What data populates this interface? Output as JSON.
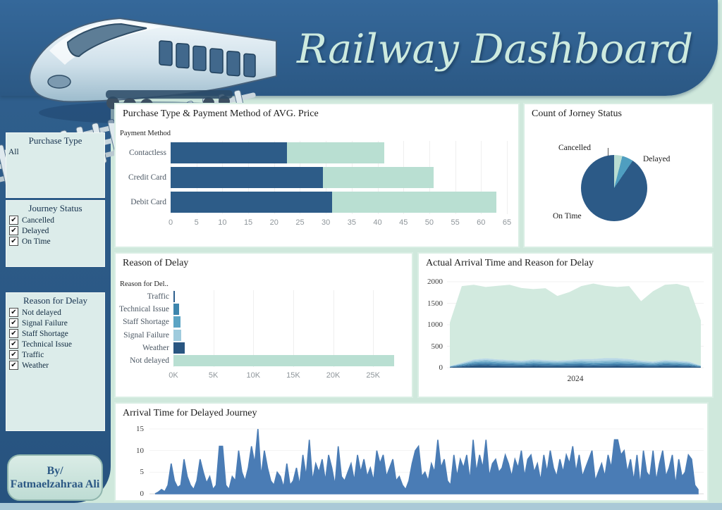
{
  "header": {
    "title": "Railway Dashboard"
  },
  "palette": {
    "header_blue": "#2f5f8d",
    "mint_background": "#cfe8dc",
    "dark_bar": "#2d5c88",
    "mint_bar": "#b9dfd2",
    "spike_blue": "#4a7cb5",
    "bottom_strip": "#aac9d7"
  },
  "sidebar": {
    "purchase_type": {
      "title": "Purchase Type",
      "value": "All"
    },
    "journey_status": {
      "title": "Journey Status",
      "items": [
        {
          "label": "Cancelled",
          "checked": true
        },
        {
          "label": "Delayed",
          "checked": true
        },
        {
          "label": "On Time",
          "checked": true
        }
      ]
    },
    "reason_for_delay": {
      "title": "Reason for Delay",
      "items": [
        {
          "label": "Not delayed",
          "checked": true
        },
        {
          "label": "Signal Failure",
          "checked": true
        },
        {
          "label": "Staff Shortage",
          "checked": true
        },
        {
          "label": "Technical Issue",
          "checked": true
        },
        {
          "label": "Traffic",
          "checked": true
        },
        {
          "label": "Weather",
          "checked": true
        }
      ]
    },
    "byline": {
      "line1": "By/",
      "line2": "Fatmaelzahraa Ali"
    }
  },
  "chart_data": [
    {
      "id": "payment_price",
      "type": "bar",
      "title": "Purchase Type & Payment Method of AVG. Price",
      "axis_label": "Payment Method",
      "categories": [
        "Contactless",
        "Credit Card",
        "Debit Card"
      ],
      "series": [
        {
          "name": "dark-segment",
          "color": "#2d5c88",
          "values": [
            22.5,
            29.5,
            31.2
          ]
        },
        {
          "name": "light-segment",
          "color": "#b9dfd2",
          "values": [
            18.8,
            21.3,
            31.8
          ]
        }
      ],
      "xticks": [
        0,
        5,
        10,
        15,
        20,
        25,
        30,
        35,
        40,
        45,
        50,
        55,
        60,
        65
      ],
      "xmax": 65
    },
    {
      "id": "journey_status_pie",
      "type": "pie",
      "title": "Count of Jorney Status",
      "slices": [
        {
          "label": "Cancelled",
          "pct": 4.0,
          "color": "#b9ddd2"
        },
        {
          "label": "Delayed",
          "pct": 5.5,
          "color": "#4f9ec0"
        },
        {
          "label": "On Time",
          "pct": 90.5,
          "color": "#2c5a87"
        }
      ]
    },
    {
      "id": "reason_of_delay",
      "type": "bar",
      "title": "Reason of Delay",
      "axis_label": "Reason for Del..",
      "categories": [
        "Traffic",
        "Technical Issue",
        "Staff Shortage",
        "Signal Failure",
        "Weather",
        "Not delayed"
      ],
      "values": [
        150,
        750,
        900,
        1000,
        1400,
        27600
      ],
      "colors": [
        "#2d5f8d",
        "#3d85ad",
        "#5ba4c4",
        "#9fcbdd",
        "#2a5681",
        "#b9dfd2"
      ],
      "xtick_labels": [
        "0K",
        "5K",
        "10K",
        "15K",
        "20K",
        "25K"
      ],
      "xtick_values": [
        0,
        5000,
        10000,
        15000,
        20000,
        25000
      ],
      "xmax": 28600
    },
    {
      "id": "arrival_area",
      "type": "area",
      "title": "Actual Arrival Time and Reason for Delay",
      "xlabel": "2024",
      "ylim": [
        0,
        2000
      ],
      "yticks": [
        0,
        500,
        1000,
        1500,
        2000
      ],
      "mint_color": "#d2eadf",
      "top": [
        1050,
        1900,
        1930,
        1880,
        1905,
        1930,
        1855,
        1830,
        1850,
        1670,
        1760,
        1900,
        1960,
        1905,
        1880,
        1900,
        1550,
        1780,
        1930,
        1950,
        1880,
        1100
      ],
      "layers": [
        {
          "color": "#2a5680",
          "values": [
            10,
            30,
            55,
            60,
            50,
            45,
            40,
            50,
            45,
            40,
            45,
            50,
            40,
            45,
            50,
            45,
            40,
            35,
            45,
            40,
            35,
            15
          ]
        },
        {
          "color": "#3d7aa6",
          "values": [
            8,
            25,
            40,
            45,
            40,
            38,
            35,
            40,
            38,
            35,
            38,
            40,
            38,
            40,
            42,
            40,
            35,
            30,
            38,
            35,
            30,
            12
          ]
        },
        {
          "color": "#5d9dc0",
          "values": [
            8,
            22,
            35,
            40,
            38,
            35,
            32,
            38,
            35,
            32,
            35,
            38,
            35,
            38,
            40,
            38,
            32,
            28,
            35,
            32,
            28,
            10
          ]
        },
        {
          "color": "#8ebfd6",
          "values": [
            6,
            20,
            32,
            38,
            35,
            32,
            30,
            35,
            32,
            30,
            32,
            35,
            40,
            45,
            42,
            38,
            30,
            26,
            32,
            30,
            26,
            8
          ]
        },
        {
          "color": "#b9d8e6",
          "values": [
            6,
            18,
            30,
            35,
            32,
            30,
            28,
            32,
            30,
            28,
            30,
            40,
            50,
            55,
            48,
            40,
            28,
            24,
            30,
            28,
            24,
            8
          ]
        }
      ]
    },
    {
      "id": "delayed_spikes",
      "type": "line",
      "title": "Arrival Time for Delayed Journey",
      "ylim": [
        0,
        15
      ],
      "yticks": [
        0,
        5,
        10,
        15
      ],
      "color": "#4a7cb5",
      "values": [
        0,
        0.4,
        1,
        0.5,
        2,
        7,
        3,
        1.5,
        2,
        8,
        4,
        2,
        1,
        3,
        8,
        5,
        2.5,
        4,
        1,
        2,
        11,
        11,
        2,
        1,
        4,
        3,
        10,
        5,
        3,
        6,
        11,
        7,
        15,
        4,
        10,
        6,
        3,
        2,
        5,
        4,
        1.5,
        7,
        2,
        3,
        6,
        2,
        9,
        4,
        12.5,
        3,
        7,
        5,
        8,
        3,
        9,
        6,
        2,
        11,
        4,
        3,
        5,
        7,
        3,
        9,
        5,
        8,
        4,
        6,
        3,
        10,
        7,
        9,
        4,
        6,
        8,
        3,
        4,
        2,
        1,
        3,
        7,
        10,
        11,
        4,
        5,
        3,
        7,
        5,
        12.5,
        6,
        8,
        3,
        2,
        9,
        4,
        8,
        6,
        9,
        3,
        12.5,
        5,
        9,
        6,
        12.5,
        4,
        7,
        8,
        5,
        6,
        9,
        7,
        4,
        8,
        6,
        10,
        4,
        8,
        9,
        5,
        7,
        3,
        9,
        5,
        10,
        6,
        4,
        8,
        5,
        9,
        7,
        11,
        5,
        9,
        4,
        6,
        8,
        10,
        3,
        5,
        7,
        4,
        9,
        6,
        12.5,
        12.5,
        9,
        10,
        5,
        8,
        3,
        9,
        2,
        10,
        5,
        4,
        10,
        3,
        7,
        10,
        4,
        6,
        9,
        2,
        8,
        4,
        5,
        9,
        8,
        2,
        1
      ]
    }
  ]
}
